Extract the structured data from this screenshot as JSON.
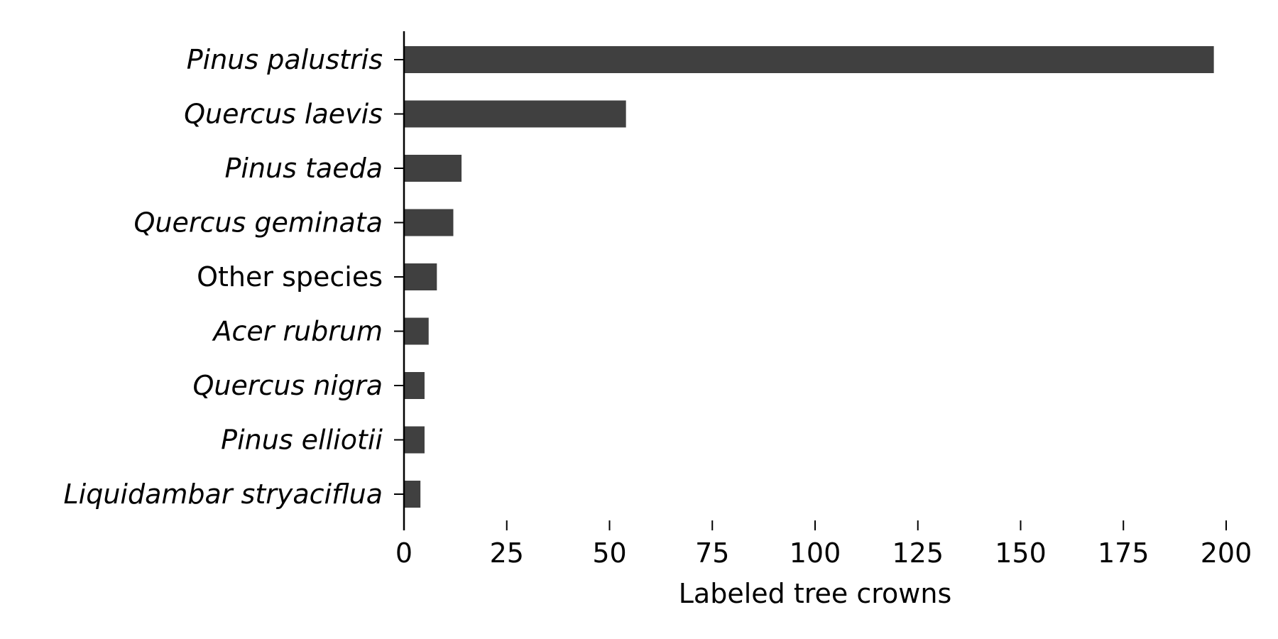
{
  "chart_data": {
    "type": "bar",
    "orientation": "horizontal",
    "categories": [
      "Pinus palustris",
      "Quercus laevis",
      "Pinus taeda",
      "Quercus geminata",
      "Other species",
      "Acer rubrum",
      "Quercus nigra",
      "Pinus elliotii",
      "Liquidambar stryaciflua"
    ],
    "italic": [
      true,
      true,
      true,
      true,
      false,
      true,
      true,
      true,
      true
    ],
    "values": [
      197,
      54,
      14,
      12,
      8,
      6,
      5,
      5,
      4
    ],
    "xlabel": "Labeled tree crowns",
    "ylabel": "",
    "title": "",
    "xlim": [
      0,
      200
    ],
    "xticks": [
      0,
      25,
      50,
      75,
      100,
      125,
      150,
      175,
      200
    ],
    "grid": false,
    "bar_color": "#404040"
  }
}
